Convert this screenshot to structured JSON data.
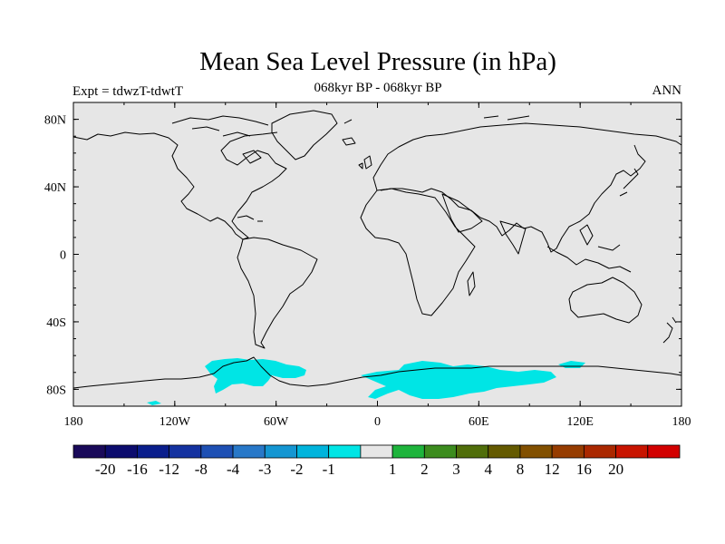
{
  "title": "Mean Sea Level Pressure (in hPa)",
  "subtitle": "068kyr BP - 068kyr BP",
  "experiment_label": "Expt = tdwzT-tdwtT",
  "season_label": "ANN",
  "map": {
    "background_color": "#e6e6e6",
    "coastline_color": "#000000",
    "projection": "cylindrical-equidistant",
    "lat_range": [
      -90,
      90
    ],
    "lon_range": [
      -180,
      180
    ],
    "lat_ticks": [
      {
        "value": 80,
        "label": "80N"
      },
      {
        "value": 40,
        "label": "40N"
      },
      {
        "value": 0,
        "label": "0"
      },
      {
        "value": -40,
        "label": "40S"
      },
      {
        "value": -80,
        "label": "80S"
      }
    ],
    "lon_ticks": [
      {
        "value": -180,
        "label": "180"
      },
      {
        "value": -120,
        "label": "120W"
      },
      {
        "value": -60,
        "label": "60W"
      },
      {
        "value": 0,
        "label": "0"
      },
      {
        "value": 60,
        "label": "60E"
      },
      {
        "value": 120,
        "label": "120E"
      },
      {
        "value": 180,
        "label": "180"
      }
    ],
    "anomaly_regions": [
      {
        "name": "amundsen-bellingshausen",
        "level": "-2 to -1",
        "color": "#00e5e5"
      },
      {
        "name": "east-antarctic-coast",
        "level": "-2 to -1",
        "color": "#00e5e5"
      }
    ]
  },
  "colorbar": {
    "colors": [
      "#1a0a5a",
      "#0c0c6e",
      "#0a1e8c",
      "#1432a0",
      "#1e50b4",
      "#2878c8",
      "#1496d2",
      "#00b4dc",
      "#00e5e5",
      "#e6e6e6",
      "#1eb43c",
      "#3c8c1e",
      "#506e0a",
      "#645a00",
      "#825000",
      "#963c00",
      "#aa2800",
      "#c81400",
      "#d20000"
    ],
    "labels": [
      "-20",
      "-16",
      "-12",
      "-8",
      "-4",
      "-3",
      "-2",
      "-1",
      "1",
      "2",
      "3",
      "4",
      "8",
      "12",
      "16",
      "20"
    ]
  }
}
